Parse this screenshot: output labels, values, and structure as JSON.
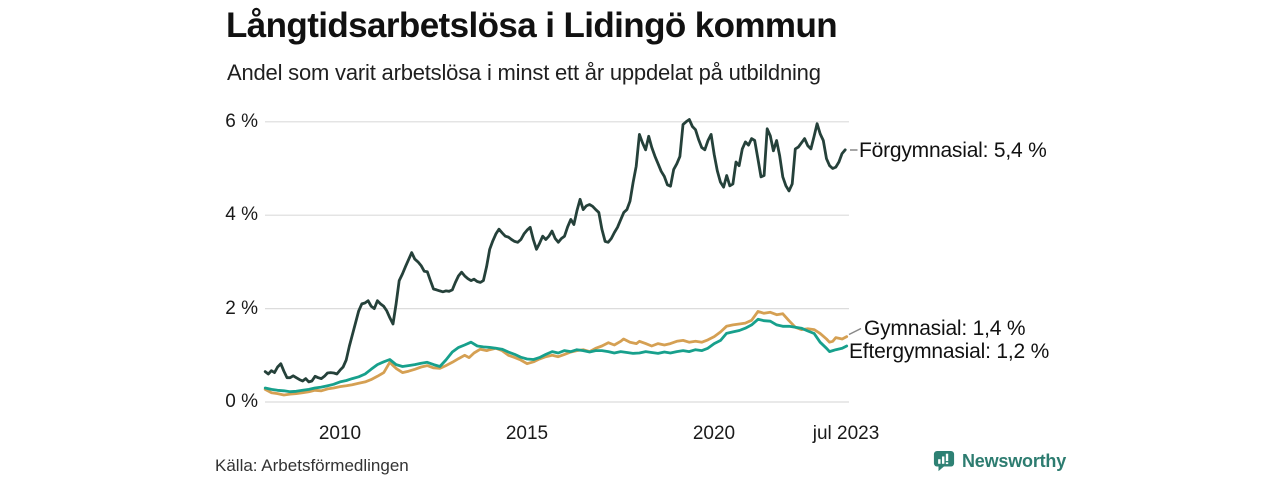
{
  "header": {
    "title": "Långtidsarbetslösa i Lidingö kommun",
    "subtitle": "Andel som varit arbetslösa i minst ett år uppdelat på utbildning"
  },
  "footer": {
    "source": "Källa: Arbetsförmedlingen",
    "brand": "Newsworthy"
  },
  "colors": {
    "forgymnasial": "#25413a",
    "gymnasial": "#d5a053",
    "eftergymnasial": "#17a08c",
    "grid": "#dcdcdc",
    "connector": "#888888",
    "brand_teal": "#2e8174",
    "text": "#1a1a1a"
  },
  "chart_data": {
    "type": "line",
    "title": "Långtidsarbetslösa i Lidingö kommun",
    "subtitle": "Andel som varit arbetslösa i minst ett år uppdelat på utbildning",
    "unit": "%",
    "xlabel": "",
    "ylabel": "",
    "grid": "horizontal",
    "x_domain": [
      2008.0,
      2023.54
    ],
    "ylim": [
      0,
      6.3
    ],
    "legend_position": "end-of-line",
    "yticks": [
      {
        "value": 6,
        "label": "6 %"
      },
      {
        "value": 4,
        "label": "4 %"
      },
      {
        "value": 2,
        "label": "2 %"
      },
      {
        "value": 0,
        "label": "0 %"
      }
    ],
    "xticks": [
      {
        "value": 2010,
        "label": "2010"
      },
      {
        "value": 2015,
        "label": "2015"
      },
      {
        "value": 2020,
        "label": "2020"
      },
      {
        "value": 2023.54,
        "label": "jul 2023"
      }
    ],
    "series": [
      {
        "id": "forgymnasial",
        "name": "Förgymnasial",
        "label": "Förgymnasial: 5,4 %",
        "last_value": 5.4,
        "color": "#25413a",
        "start": 2008.0,
        "step": 0.083333,
        "values": [
          0.65,
          0.6,
          0.67,
          0.63,
          0.75,
          0.82,
          0.66,
          0.52,
          0.52,
          0.56,
          0.52,
          0.48,
          0.45,
          0.5,
          0.43,
          0.45,
          0.55,
          0.52,
          0.5,
          0.55,
          0.62,
          0.63,
          0.62,
          0.6,
          0.68,
          0.75,
          0.9,
          1.2,
          1.45,
          1.7,
          1.95,
          2.1,
          2.12,
          2.17,
          2.05,
          2.0,
          2.17,
          2.1,
          2.05,
          1.95,
          1.8,
          1.67,
          2.1,
          2.6,
          2.74,
          2.9,
          3.05,
          3.2,
          3.06,
          3.0,
          2.92,
          2.8,
          2.79,
          2.6,
          2.42,
          2.4,
          2.38,
          2.36,
          2.38,
          2.37,
          2.4,
          2.56,
          2.7,
          2.78,
          2.7,
          2.64,
          2.6,
          2.63,
          2.58,
          2.56,
          2.6,
          2.9,
          3.27,
          3.45,
          3.6,
          3.7,
          3.62,
          3.55,
          3.53,
          3.48,
          3.44,
          3.42,
          3.48,
          3.6,
          3.68,
          3.74,
          3.48,
          3.27,
          3.4,
          3.55,
          3.48,
          3.55,
          3.66,
          3.5,
          3.42,
          3.5,
          3.55,
          3.75,
          3.91,
          3.8,
          4.1,
          4.34,
          4.12,
          4.2,
          4.23,
          4.19,
          4.12,
          4.06,
          3.7,
          3.44,
          3.42,
          3.5,
          3.63,
          3.74,
          3.9,
          4.06,
          4.12,
          4.3,
          4.7,
          5.05,
          5.73,
          5.55,
          5.4,
          5.69,
          5.45,
          5.26,
          5.1,
          4.94,
          4.83,
          4.65,
          4.62,
          4.98,
          5.1,
          5.26,
          5.94,
          6.0,
          6.05,
          5.9,
          5.83,
          5.62,
          5.45,
          5.4,
          5.6,
          5.73,
          5.3,
          4.95,
          4.71,
          4.6,
          4.85,
          4.63,
          4.67,
          5.14,
          5.06,
          5.42,
          5.57,
          5.5,
          5.64,
          5.6,
          5.21,
          4.82,
          4.85,
          5.85,
          5.7,
          5.38,
          5.6,
          5.27,
          4.82,
          4.63,
          4.52,
          4.67,
          5.42,
          5.46,
          5.55,
          5.64,
          5.49,
          5.42,
          5.68,
          5.96,
          5.74,
          5.6,
          5.21,
          5.06,
          5.0,
          5.03,
          5.14,
          5.32,
          5.4
        ]
      },
      {
        "id": "gymnasial",
        "name": "Gymnasial",
        "label": "Gymnasial: 1,4 %",
        "last_value": 1.4,
        "color": "#d5a053",
        "points": [
          [
            2008.0,
            0.27
          ],
          [
            2008.17,
            0.2
          ],
          [
            2008.33,
            0.18
          ],
          [
            2008.5,
            0.15
          ],
          [
            2008.67,
            0.17
          ],
          [
            2008.83,
            0.18
          ],
          [
            2009.0,
            0.2
          ],
          [
            2009.17,
            0.22
          ],
          [
            2009.33,
            0.25
          ],
          [
            2009.5,
            0.24
          ],
          [
            2009.67,
            0.28
          ],
          [
            2009.83,
            0.3
          ],
          [
            2010.0,
            0.33
          ],
          [
            2010.17,
            0.35
          ],
          [
            2010.33,
            0.37
          ],
          [
            2010.5,
            0.4
          ],
          [
            2010.67,
            0.43
          ],
          [
            2010.83,
            0.48
          ],
          [
            2011.0,
            0.55
          ],
          [
            2011.17,
            0.63
          ],
          [
            2011.33,
            0.85
          ],
          [
            2011.42,
            0.78
          ],
          [
            2011.5,
            0.72
          ],
          [
            2011.67,
            0.63
          ],
          [
            2011.83,
            0.66
          ],
          [
            2012.0,
            0.7
          ],
          [
            2012.17,
            0.75
          ],
          [
            2012.33,
            0.78
          ],
          [
            2012.5,
            0.73
          ],
          [
            2012.67,
            0.72
          ],
          [
            2012.83,
            0.78
          ],
          [
            2013.0,
            0.85
          ],
          [
            2013.17,
            0.93
          ],
          [
            2013.33,
            1.0
          ],
          [
            2013.45,
            0.95
          ],
          [
            2013.58,
            1.05
          ],
          [
            2013.75,
            1.13
          ],
          [
            2013.92,
            1.1
          ],
          [
            2014.0,
            1.12
          ],
          [
            2014.17,
            1.15
          ],
          [
            2014.33,
            1.1
          ],
          [
            2014.5,
            1.0
          ],
          [
            2014.67,
            0.95
          ],
          [
            2014.83,
            0.9
          ],
          [
            2015.0,
            0.82
          ],
          [
            2015.17,
            0.86
          ],
          [
            2015.33,
            0.92
          ],
          [
            2015.5,
            0.97
          ],
          [
            2015.67,
            1.0
          ],
          [
            2015.83,
            0.97
          ],
          [
            2016.0,
            1.02
          ],
          [
            2016.17,
            1.07
          ],
          [
            2016.33,
            1.1
          ],
          [
            2016.5,
            1.12
          ],
          [
            2016.67,
            1.08
          ],
          [
            2016.83,
            1.15
          ],
          [
            2017.0,
            1.2
          ],
          [
            2017.17,
            1.27
          ],
          [
            2017.33,
            1.22
          ],
          [
            2017.5,
            1.3
          ],
          [
            2017.58,
            1.35
          ],
          [
            2017.75,
            1.28
          ],
          [
            2017.92,
            1.25
          ],
          [
            2018.0,
            1.3
          ],
          [
            2018.17,
            1.25
          ],
          [
            2018.33,
            1.2
          ],
          [
            2018.5,
            1.25
          ],
          [
            2018.67,
            1.22
          ],
          [
            2018.83,
            1.25
          ],
          [
            2019.0,
            1.3
          ],
          [
            2019.17,
            1.32
          ],
          [
            2019.33,
            1.28
          ],
          [
            2019.5,
            1.3
          ],
          [
            2019.67,
            1.28
          ],
          [
            2019.83,
            1.33
          ],
          [
            2020.0,
            1.4
          ],
          [
            2020.17,
            1.5
          ],
          [
            2020.33,
            1.62
          ],
          [
            2020.5,
            1.65
          ],
          [
            2020.67,
            1.67
          ],
          [
            2020.83,
            1.69
          ],
          [
            2021.0,
            1.75
          ],
          [
            2021.17,
            1.94
          ],
          [
            2021.33,
            1.9
          ],
          [
            2021.5,
            1.92
          ],
          [
            2021.67,
            1.87
          ],
          [
            2021.83,
            1.89
          ],
          [
            2022.0,
            1.74
          ],
          [
            2022.17,
            1.6
          ],
          [
            2022.33,
            1.55
          ],
          [
            2022.5,
            1.57
          ],
          [
            2022.67,
            1.55
          ],
          [
            2022.83,
            1.47
          ],
          [
            2023.0,
            1.35
          ],
          [
            2023.08,
            1.28
          ],
          [
            2023.17,
            1.3
          ],
          [
            2023.25,
            1.38
          ],
          [
            2023.42,
            1.35
          ],
          [
            2023.54,
            1.4
          ]
        ]
      },
      {
        "id": "eftergymnasial",
        "name": "Eftergymnasial",
        "label": "Eftergymnasial: 1,2 %",
        "last_value": 1.2,
        "color": "#17a08c",
        "points": [
          [
            2008.0,
            0.3
          ],
          [
            2008.17,
            0.27
          ],
          [
            2008.33,
            0.25
          ],
          [
            2008.5,
            0.24
          ],
          [
            2008.67,
            0.22
          ],
          [
            2008.83,
            0.23
          ],
          [
            2009.0,
            0.25
          ],
          [
            2009.17,
            0.27
          ],
          [
            2009.33,
            0.3
          ],
          [
            2009.5,
            0.32
          ],
          [
            2009.67,
            0.35
          ],
          [
            2009.83,
            0.38
          ],
          [
            2010.0,
            0.43
          ],
          [
            2010.17,
            0.46
          ],
          [
            2010.33,
            0.5
          ],
          [
            2010.5,
            0.54
          ],
          [
            2010.67,
            0.6
          ],
          [
            2010.83,
            0.7
          ],
          [
            2011.0,
            0.8
          ],
          [
            2011.17,
            0.86
          ],
          [
            2011.33,
            0.91
          ],
          [
            2011.5,
            0.8
          ],
          [
            2011.67,
            0.76
          ],
          [
            2011.83,
            0.78
          ],
          [
            2012.0,
            0.8
          ],
          [
            2012.17,
            0.83
          ],
          [
            2012.33,
            0.85
          ],
          [
            2012.5,
            0.8
          ],
          [
            2012.67,
            0.76
          ],
          [
            2012.83,
            0.9
          ],
          [
            2013.0,
            1.07
          ],
          [
            2013.17,
            1.17
          ],
          [
            2013.33,
            1.22
          ],
          [
            2013.5,
            1.28
          ],
          [
            2013.67,
            1.2
          ],
          [
            2013.83,
            1.18
          ],
          [
            2014.0,
            1.17
          ],
          [
            2014.17,
            1.15
          ],
          [
            2014.33,
            1.13
          ],
          [
            2014.5,
            1.07
          ],
          [
            2014.67,
            1.02
          ],
          [
            2014.83,
            0.96
          ],
          [
            2015.0,
            0.92
          ],
          [
            2015.17,
            0.91
          ],
          [
            2015.33,
            0.95
          ],
          [
            2015.5,
            1.02
          ],
          [
            2015.67,
            1.08
          ],
          [
            2015.83,
            1.05
          ],
          [
            2016.0,
            1.1
          ],
          [
            2016.17,
            1.08
          ],
          [
            2016.33,
            1.12
          ],
          [
            2016.5,
            1.1
          ],
          [
            2016.67,
            1.07
          ],
          [
            2016.83,
            1.1
          ],
          [
            2017.0,
            1.1
          ],
          [
            2017.17,
            1.08
          ],
          [
            2017.33,
            1.05
          ],
          [
            2017.5,
            1.08
          ],
          [
            2017.67,
            1.06
          ],
          [
            2017.83,
            1.04
          ],
          [
            2018.0,
            1.05
          ],
          [
            2018.17,
            1.08
          ],
          [
            2018.33,
            1.06
          ],
          [
            2018.5,
            1.04
          ],
          [
            2018.67,
            1.07
          ],
          [
            2018.83,
            1.05
          ],
          [
            2019.0,
            1.08
          ],
          [
            2019.17,
            1.1
          ],
          [
            2019.33,
            1.08
          ],
          [
            2019.5,
            1.12
          ],
          [
            2019.67,
            1.1
          ],
          [
            2019.83,
            1.15
          ],
          [
            2020.0,
            1.25
          ],
          [
            2020.17,
            1.32
          ],
          [
            2020.33,
            1.47
          ],
          [
            2020.5,
            1.5
          ],
          [
            2020.67,
            1.53
          ],
          [
            2020.83,
            1.58
          ],
          [
            2021.0,
            1.65
          ],
          [
            2021.17,
            1.77
          ],
          [
            2021.33,
            1.74
          ],
          [
            2021.5,
            1.73
          ],
          [
            2021.67,
            1.65
          ],
          [
            2021.83,
            1.62
          ],
          [
            2022.0,
            1.62
          ],
          [
            2022.17,
            1.6
          ],
          [
            2022.33,
            1.58
          ],
          [
            2022.5,
            1.52
          ],
          [
            2022.67,
            1.47
          ],
          [
            2022.83,
            1.28
          ],
          [
            2023.0,
            1.15
          ],
          [
            2023.08,
            1.08
          ],
          [
            2023.17,
            1.1
          ],
          [
            2023.25,
            1.12
          ],
          [
            2023.42,
            1.15
          ],
          [
            2023.54,
            1.2
          ]
        ]
      }
    ]
  }
}
